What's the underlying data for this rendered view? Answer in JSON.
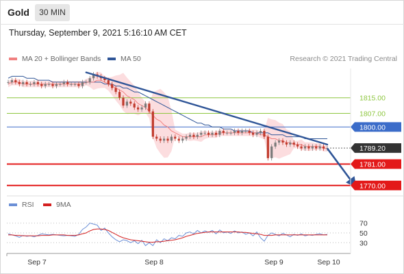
{
  "header": {
    "title": "Gold",
    "timeframe": "30 MIN"
  },
  "date_line": "Thursday, September 9, 2021 5:16:10 AM CET",
  "legend": {
    "ma20": "MA 20 + Bollinger Bands",
    "ma50": "MA 50",
    "credit": "Research © 2021 Trading Central"
  },
  "rsi_legend": {
    "rsi": "RSI",
    "ma": "9MA"
  },
  "colors": {
    "ma20": "#f08080",
    "ma50": "#2f5597",
    "band_fill": "#fbd7d9",
    "resistance_green": "#8dc63f",
    "pivot_blue": "#3b6cc9",
    "support_red": "#e31919",
    "last_price_tag": "#333333",
    "rsi_line": "#6b8fd6",
    "rsi_ma": "#d42020",
    "candle_up": "#7a7a7a",
    "candle_down": "#c0392b"
  },
  "chart_data": [
    {
      "type": "line",
      "title": "Gold 30 MIN",
      "x_tick_labels": [
        "Sep 7",
        "Sep 8",
        "Sep 9",
        "Sep 10"
      ],
      "y_range": [
        1765,
        1830
      ],
      "levels": [
        {
          "label": "1815.00",
          "value": 1815,
          "style": "resistance",
          "color": "#8dc63f",
          "tagged": false
        },
        {
          "label": "1807.00",
          "value": 1807,
          "style": "resistance",
          "color": "#8dc63f",
          "tagged": false
        },
        {
          "label": "1800.00",
          "value": 1800,
          "style": "pivot",
          "color": "#3b6cc9",
          "tagged": true
        },
        {
          "label": "1789.20",
          "value": 1789.2,
          "style": "last",
          "color": "#333333",
          "tagged": true
        },
        {
          "label": "1781.00",
          "value": 1781,
          "style": "support",
          "color": "#e31919",
          "tagged": true
        },
        {
          "label": "1770.00",
          "value": 1770,
          "style": "support",
          "color": "#e31919",
          "tagged": true
        }
      ],
      "price_series": [
        1823,
        1824,
        1823,
        1822,
        1823,
        1822,
        1822,
        1823,
        1822,
        1821,
        1822,
        1822,
        1821,
        1822,
        1822,
        1823,
        1822,
        1822,
        1822,
        1821,
        1823,
        1823,
        1825,
        1827,
        1826,
        1825,
        1824,
        1822,
        1820,
        1818,
        1815,
        1811,
        1813,
        1812,
        1810,
        1809,
        1810,
        1812,
        1808,
        1795,
        1794,
        1793,
        1794,
        1793,
        1795,
        1794,
        1793,
        1794,
        1795,
        1796,
        1795,
        1796,
        1797,
        1797,
        1796,
        1797,
        1796,
        1798,
        1797,
        1797,
        1797,
        1798,
        1797,
        1798,
        1798,
        1797,
        1796,
        1797,
        1798,
        1795,
        1784,
        1790,
        1792,
        1793,
        1792,
        1791,
        1792,
        1791,
        1790,
        1789,
        1790,
        1789,
        1790,
        1789,
        1790,
        1789,
        1789.2
      ],
      "ma20": [
        1822,
        1823,
        1823,
        1823,
        1822,
        1822,
        1822,
        1822,
        1822,
        1822,
        1822,
        1822,
        1822,
        1822,
        1822,
        1822,
        1822,
        1822,
        1822,
        1822,
        1822,
        1823,
        1823,
        1823,
        1824,
        1824,
        1823,
        1822,
        1821,
        1820,
        1819,
        1818,
        1816,
        1815,
        1814,
        1812,
        1811,
        1810,
        1808,
        1806,
        1804,
        1803,
        1801,
        1800,
        1798,
        1797,
        1796,
        1795,
        1795,
        1795,
        1795,
        1795,
        1795,
        1796,
        1796,
        1796,
        1796,
        1797,
        1797,
        1797,
        1797,
        1797,
        1797,
        1797,
        1797,
        1797,
        1797,
        1797,
        1796,
        1796,
        1795,
        1794,
        1794,
        1793,
        1793,
        1792,
        1792,
        1791,
        1791,
        1791,
        1790,
        1790,
        1790,
        1790,
        1790,
        1789,
        1789
      ],
      "ma50": [
        1825,
        1826,
        1826,
        1826,
        1826,
        1825,
        1825,
        1825,
        1824,
        1824,
        1824,
        1824,
        1823,
        1823,
        1823,
        1823,
        1823,
        1823,
        1823,
        1823,
        1823,
        1823,
        1823,
        1823,
        1823,
        1823,
        1822,
        1822,
        1822,
        1821,
        1821,
        1820,
        1820,
        1819,
        1818,
        1818,
        1817,
        1816,
        1815,
        1814,
        1813,
        1812,
        1811,
        1810,
        1809,
        1808,
        1807,
        1806,
        1805,
        1804,
        1803,
        1802,
        1802,
        1801,
        1801,
        1800,
        1800,
        1800,
        1799,
        1799,
        1799,
        1798,
        1798,
        1798,
        1798,
        1798,
        1797,
        1797,
        1797,
        1797,
        1797,
        1796,
        1796,
        1796,
        1796,
        1795,
        1795,
        1795,
        1795,
        1795,
        1794,
        1794,
        1794,
        1794,
        1794,
        1794,
        1794
      ],
      "trendline": {
        "from": {
          "index": 21,
          "value": 1828
        },
        "to": {
          "index": 86,
          "value": 1791
        }
      },
      "forecast_arrow": {
        "from": {
          "index": 86,
          "value": 1789
        },
        "to": {
          "index": 93,
          "value": 1771
        }
      }
    },
    {
      "type": "line",
      "title": "RSI",
      "y_tick_labels": [
        "70",
        "50",
        "30"
      ],
      "y_range": [
        15,
        85
      ],
      "rsi": [
        48,
        46,
        44,
        41,
        45,
        43,
        44,
        42,
        45,
        48,
        47,
        46,
        47,
        46,
        45,
        44,
        45,
        44,
        43,
        47,
        57,
        62,
        70,
        68,
        66,
        55,
        60,
        50,
        42,
        36,
        32,
        36,
        34,
        30,
        34,
        28,
        35,
        24,
        30,
        24,
        36,
        30,
        38,
        34,
        40,
        38,
        45,
        43,
        50,
        52,
        48,
        55,
        50,
        54,
        51,
        55,
        48,
        56,
        50,
        52,
        49,
        54,
        50,
        52,
        47,
        50,
        44,
        52,
        40,
        33,
        45,
        50,
        47,
        44,
        49,
        46,
        42,
        47,
        45,
        48,
        44,
        46,
        45,
        47,
        48,
        46,
        47
      ],
      "rsi_ma": [
        46,
        46,
        45,
        45,
        44,
        44,
        44,
        44,
        44,
        45,
        45,
        45,
        46,
        46,
        46,
        46,
        45,
        45,
        45,
        46,
        48,
        50,
        54,
        57,
        58,
        58,
        57,
        55,
        51,
        47,
        43,
        40,
        38,
        36,
        35,
        34,
        33,
        32,
        31,
        31,
        32,
        32,
        33,
        34,
        35,
        36,
        38,
        40,
        43,
        45,
        47,
        49,
        50,
        51,
        52,
        52,
        52,
        52,
        52,
        52,
        52,
        52,
        52,
        51,
        51,
        50,
        49,
        48,
        47,
        45,
        45,
        45,
        46,
        46,
        46,
        46,
        46,
        46,
        46,
        46,
        46,
        46,
        46,
        46,
        46,
        46,
        46
      ]
    }
  ]
}
